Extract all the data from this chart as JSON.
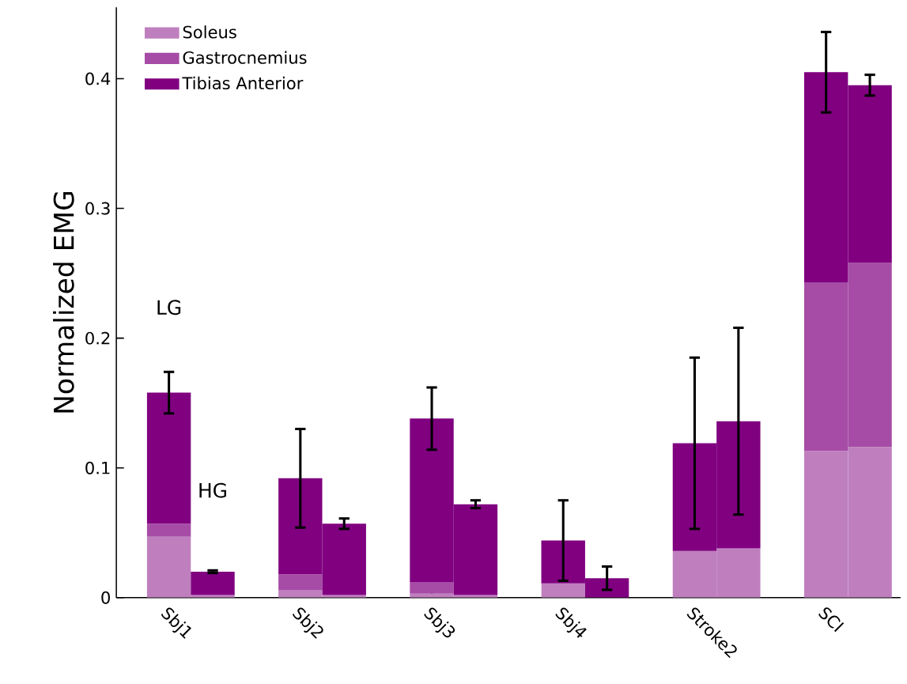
{
  "chart_data": {
    "type": "bar",
    "ylabel": "Normalized EMG",
    "categories": [
      "Sbj1",
      null,
      "Sbj2",
      null,
      "Sbj3",
      null,
      "Sbj4",
      null,
      "Stroke2",
      null,
      "SCI",
      null
    ],
    "stacked": true,
    "ylim": [
      0,
      0.455
    ],
    "yticks": [
      0,
      0.1,
      0.2,
      0.3,
      0.4
    ],
    "legend": "top left",
    "grid": false,
    "series": [
      {
        "name": "Soleus",
        "color": "#bf7fbf",
        "values": [
          0.047,
          0.002,
          0.006,
          0.002,
          0.003,
          0.002,
          0.011,
          null,
          0.036,
          0.038,
          0.113,
          0.116
        ]
      },
      {
        "name": "Gastrocnemius",
        "color": "#a64ca6",
        "values": [
          0.01,
          null,
          0.012,
          null,
          0.009,
          null,
          null,
          null,
          null,
          null,
          0.13,
          0.142
        ]
      },
      {
        "name": "Tibias Anterior",
        "color": "#800080",
        "values": [
          0.101,
          0.018,
          0.074,
          0.055,
          0.126,
          0.07,
          0.033,
          0.015,
          0.083,
          0.098,
          0.162,
          0.137
        ],
        "errors": [
          0.016,
          0.001,
          0.038,
          0.004,
          0.024,
          0.003,
          0.031,
          0.009,
          0.066,
          0.072,
          0.031,
          0.008
        ]
      }
    ],
    "annotations": [
      "LG",
      "HG"
    ]
  }
}
